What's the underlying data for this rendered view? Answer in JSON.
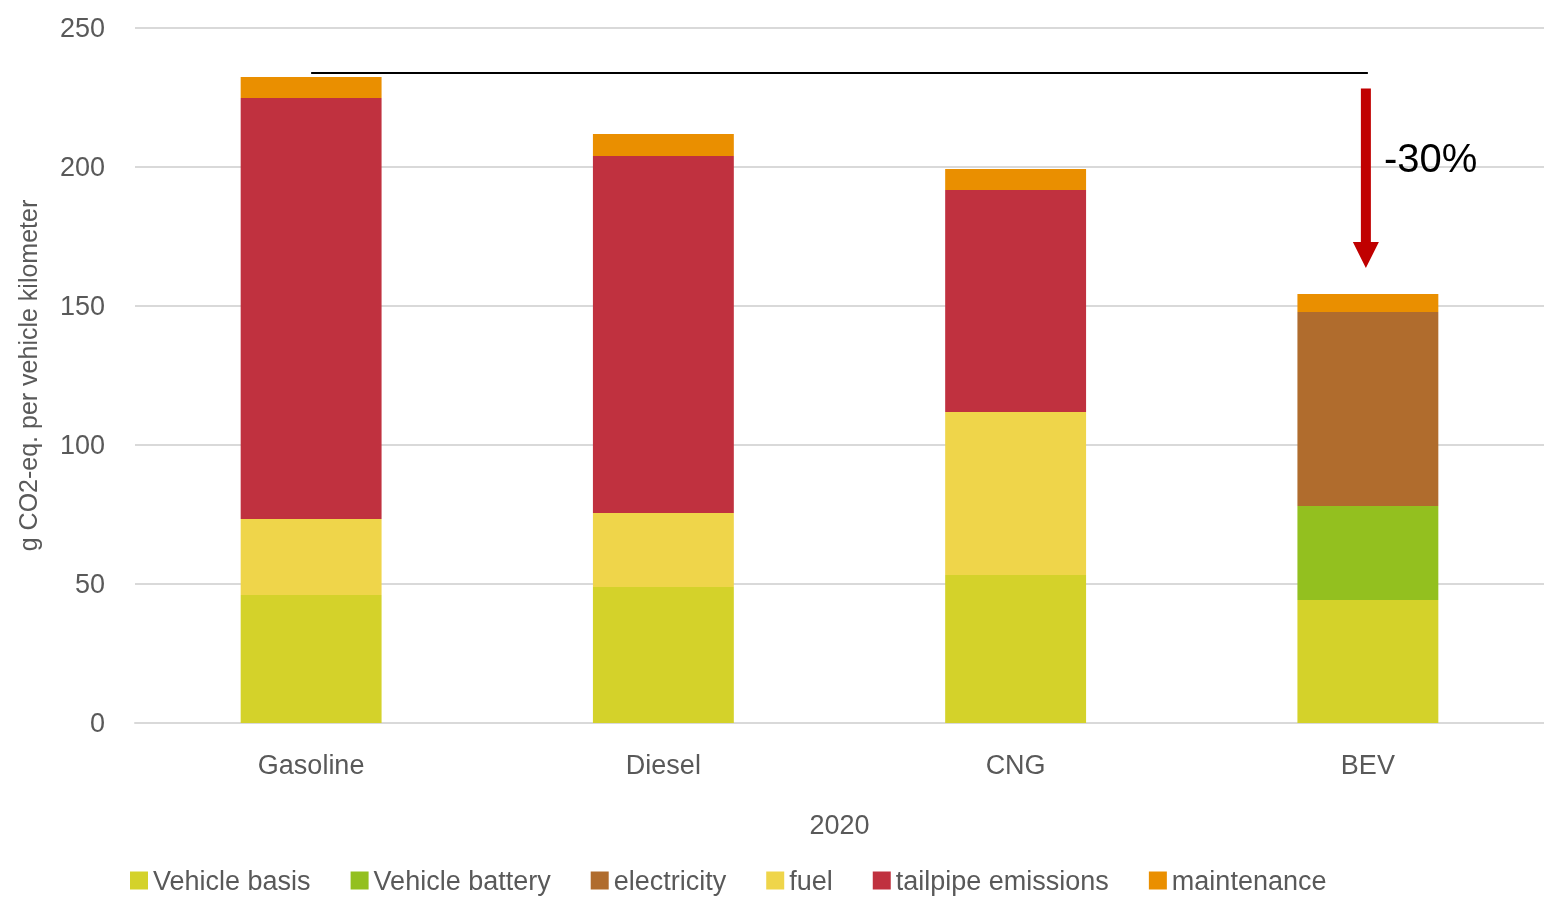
{
  "chart_data": {
    "type": "bar",
    "stacked": true,
    "categories": [
      "Gasoline",
      "Diesel",
      "CNG",
      "BEV"
    ],
    "xlabel": "2020",
    "ylabel": "g CO2-eq. per vehicle kilometer",
    "series": [
      {
        "name": "Vehicle basis",
        "color": "#d4d22a",
        "values": [
          46.0,
          48.9,
          53.2,
          44.2
        ]
      },
      {
        "name": "Vehicle battery",
        "color": "#93c01f",
        "values": [
          null,
          null,
          null,
          33.9
        ]
      },
      {
        "name": "electricity",
        "color": "#b06c2d",
        "values": [
          null,
          null,
          null,
          69.7
        ]
      },
      {
        "name": "fuel",
        "color": "#efd54a",
        "values": [
          27.4,
          26.6,
          58.7,
          null
        ]
      },
      {
        "name": "tailpipe emissions",
        "color": "#c0313f",
        "values": [
          151.4,
          128.5,
          79.8,
          null
        ]
      },
      {
        "name": "maintenance",
        "color": "#ea8f00",
        "values": [
          7.6,
          7.9,
          7.6,
          6.5
        ]
      }
    ],
    "ylim": [
      0,
      250
    ],
    "yticks": [
      0,
      50,
      100,
      150,
      200,
      250
    ],
    "grid": "y",
    "legend": "bottom",
    "ref_lines": [
      {
        "axis": "y",
        "value": 234,
        "label": null,
        "color": "#000000"
      }
    ],
    "annotations": [
      "-30%"
    ]
  }
}
